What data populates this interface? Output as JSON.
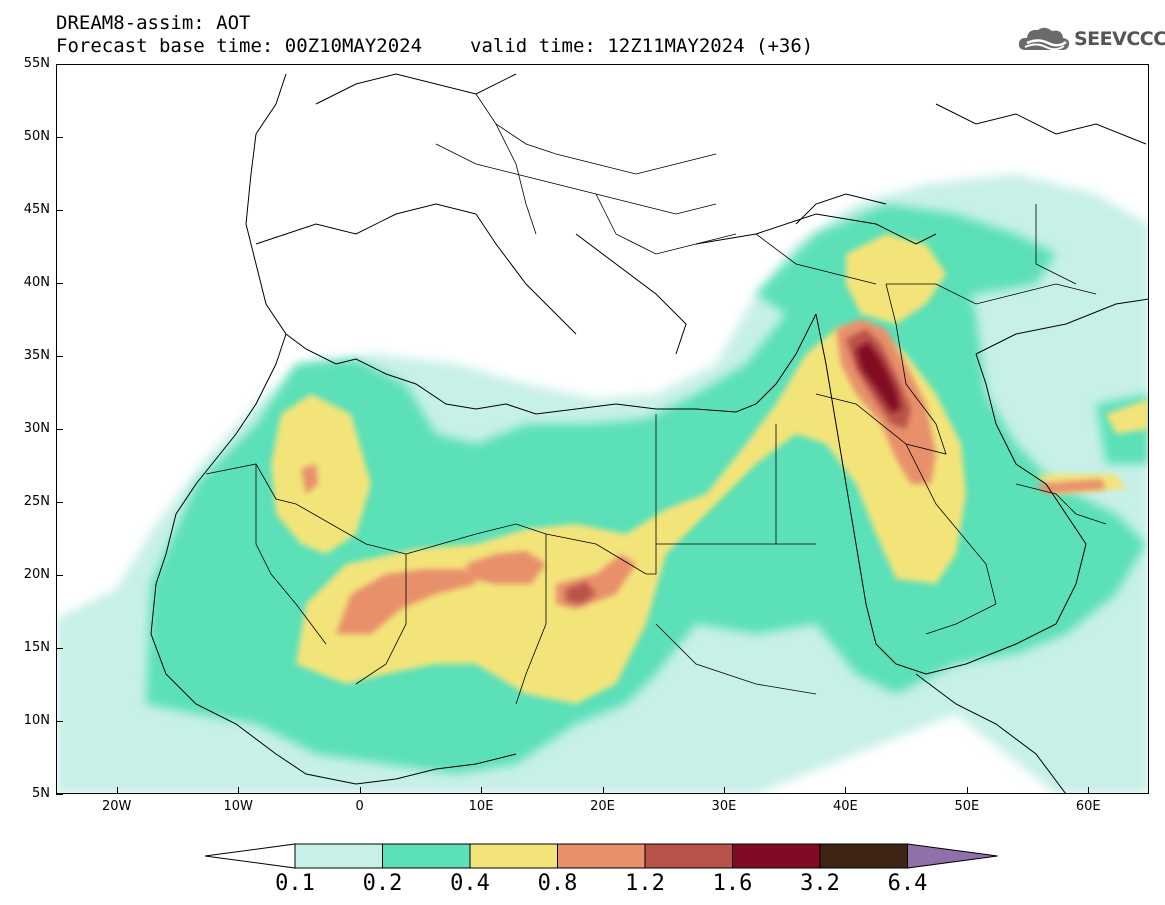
{
  "title": {
    "line1": "DREAM8-assim: AOT",
    "base_time": "Forecast base time: 00Z10MAY2024",
    "valid_time": "valid time: 12Z11MAY2024 (+36)"
  },
  "logo": {
    "text": "SEEVCCC",
    "icon": "cloud-icon"
  },
  "map": {
    "projection": "equirectangular",
    "lon_range": [
      -25,
      65
    ],
    "lat_range": [
      5,
      55
    ],
    "variable": "aerosol optical thickness",
    "lat_ticks": [
      "5N",
      "10N",
      "15N",
      "20N",
      "25N",
      "30N",
      "35N",
      "40N",
      "45N",
      "50N",
      "55N"
    ],
    "lon_ticks": [
      "20W",
      "10W",
      "0",
      "10E",
      "20E",
      "30E",
      "40E",
      "50E",
      "60E"
    ]
  },
  "colorbar": {
    "levels": [
      "0.1",
      "0.2",
      "0.4",
      "0.8",
      "1.2",
      "1.6",
      "3.2",
      "6.4"
    ],
    "colors": [
      "#c7f0e8",
      "#5ce0b8",
      "#f3e47a",
      "#e8906a",
      "#b9534a",
      "#820a24",
      "#3d2414"
    ],
    "under_color": "#ffffff",
    "over_color": "#9070a8"
  }
}
